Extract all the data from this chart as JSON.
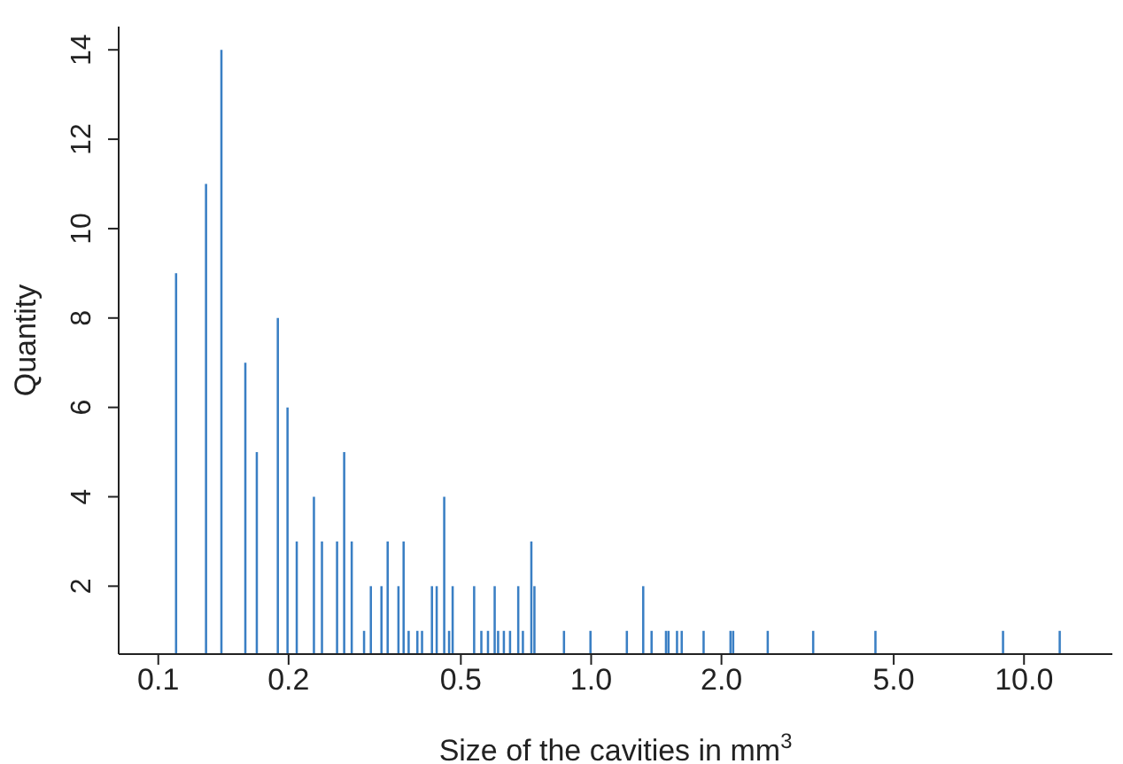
{
  "chart_data": {
    "type": "bar",
    "xlabel": "Size of the cavities in mm$^{3}$",
    "ylabel": "Quantity",
    "log": "x",
    "color": "#3a7fc4",
    "x": [
      0.11,
      0.129,
      0.14,
      0.159,
      0.169,
      0.189,
      0.199,
      0.209,
      0.229,
      0.239,
      0.259,
      0.269,
      0.28,
      0.299,
      0.31,
      0.328,
      0.339,
      0.359,
      0.369,
      0.379,
      0.397,
      0.407,
      0.429,
      0.44,
      0.458,
      0.47,
      0.479,
      0.537,
      0.558,
      0.578,
      0.599,
      0.61,
      0.629,
      0.65,
      0.679,
      0.696,
      0.728,
      0.74,
      0.866,
      0.997,
      1.21,
      1.32,
      1.38,
      1.49,
      1.51,
      1.58,
      1.62,
      1.82,
      2.1,
      2.13,
      2.56,
      3.26,
      4.54,
      8.95,
      12.1
    ],
    "values": [
      9,
      11,
      14,
      7,
      5,
      8,
      6,
      3,
      4,
      3,
      3,
      5,
      3,
      1,
      2,
      2,
      3,
      2,
      3,
      1,
      1,
      1,
      2,
      2,
      4,
      1,
      2,
      2,
      1,
      1,
      2,
      1,
      1,
      1,
      2,
      1,
      3,
      2,
      1,
      1,
      1,
      2,
      1,
      1,
      1,
      1,
      1,
      1,
      1,
      1,
      1,
      1,
      1,
      1,
      1
    ],
    "xlim": [
      0.081,
      16
    ],
    "xticks": [
      0.1,
      0.2,
      0.5,
      {
        "value": 1,
        "label": "1.0"
      },
      {
        "value": 2,
        "label": "2.0"
      },
      {
        "value": 5,
        "label": "5.0"
      },
      {
        "value": 10,
        "label": "10.0"
      }
    ],
    "ylim": [
      0.48,
      14.52
    ],
    "yticks": [
      2,
      4,
      6,
      8,
      10,
      12,
      14
    ],
    "grid": false,
    "legend": false
  }
}
